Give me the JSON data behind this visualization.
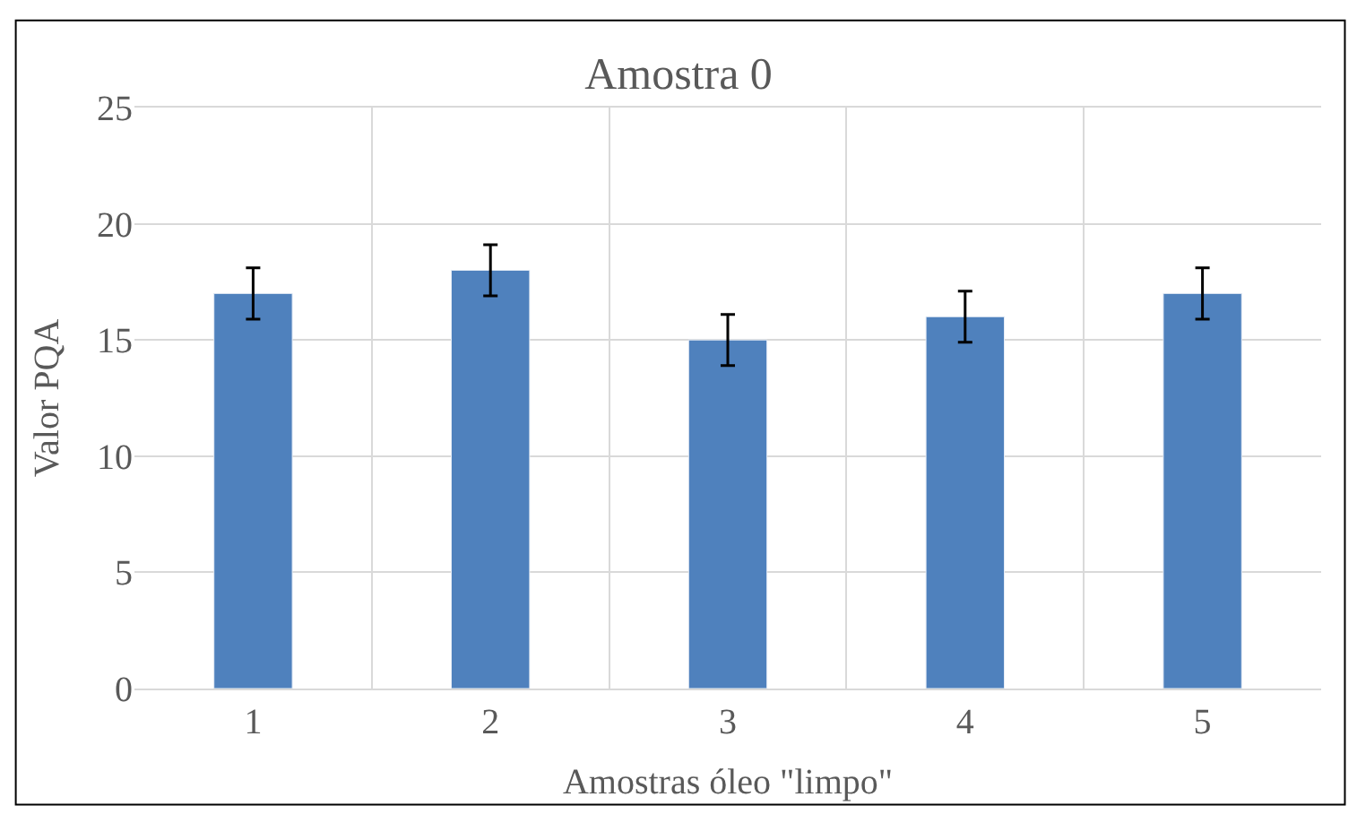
{
  "chart_data": {
    "type": "bar",
    "title": "Amostra 0",
    "xlabel": "Amostras óleo \"limpo\"",
    "ylabel": "Valor PQA",
    "categories": [
      "1",
      "2",
      "3",
      "4",
      "5"
    ],
    "values": [
      17,
      18,
      15,
      16,
      17
    ],
    "errors": [
      1.1,
      1.1,
      1.1,
      1.1,
      1.1
    ],
    "color": "#4f81bd",
    "ylim": [
      0,
      25
    ],
    "yticks": [
      0,
      5,
      10,
      15,
      20,
      25
    ],
    "grid": true
  }
}
